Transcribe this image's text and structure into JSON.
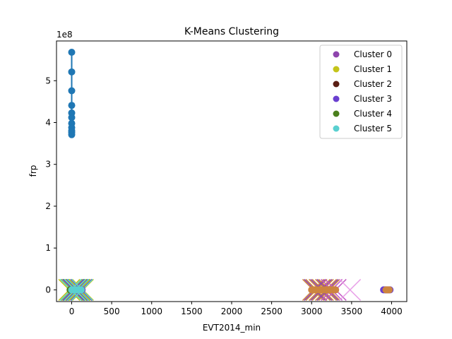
{
  "chart_data": {
    "type": "scatter",
    "title": "K-Means Clustering",
    "xlabel": "EVT2014_min",
    "ylabel": "frp",
    "y_offset_label": "1e8",
    "xlim": [
      -190,
      4190
    ],
    "ylim": [
      -0.28,
      5.95
    ],
    "y_multiplier": 100000000,
    "x_ticks": [
      {
        "value": 0,
        "label": "0"
      },
      {
        "value": 500,
        "label": "500"
      },
      {
        "value": 1000,
        "label": "1000"
      },
      {
        "value": 1500,
        "label": "1500"
      },
      {
        "value": 2000,
        "label": "2000"
      },
      {
        "value": 2500,
        "label": "2500"
      },
      {
        "value": 3000,
        "label": "3000"
      },
      {
        "value": 3500,
        "label": "3500"
      },
      {
        "value": 4000,
        "label": "4000"
      }
    ],
    "y_ticks": [
      {
        "value": 0,
        "label": "0"
      },
      {
        "value": 1,
        "label": "1"
      },
      {
        "value": 2,
        "label": "2"
      },
      {
        "value": 3,
        "label": "3"
      },
      {
        "value": 4,
        "label": "4"
      },
      {
        "value": 5,
        "label": "5"
      }
    ],
    "legend_position": "top-right",
    "legend": [
      {
        "label": "Cluster 0",
        "color": "#8e44ad"
      },
      {
        "label": "Cluster 1",
        "color": "#c4c41a"
      },
      {
        "label": "Cluster 2",
        "color": "#5a1e14"
      },
      {
        "label": "Cluster 3",
        "color": "#6a3fd0"
      },
      {
        "label": "Cluster 4",
        "color": "#4a7f1c"
      },
      {
        "label": "Cluster 5",
        "color": "#5ad0d0"
      }
    ],
    "line_series": {
      "color": "#1f77b4",
      "x": [
        0,
        0,
        0,
        0,
        0,
        0,
        0,
        0,
        0,
        0,
        0
      ],
      "y": [
        5.68,
        5.21,
        4.76,
        4.41,
        4.23,
        4.12,
        3.98,
        3.88,
        3.8,
        3.76,
        3.71
      ]
    },
    "marker_clusters": [
      {
        "color": "#1f77b4",
        "x": [
          0
        ],
        "y": [
          0.0
        ]
      },
      {
        "color": "#8e44ad",
        "x": [
          10,
          40,
          70,
          100,
          130
        ],
        "y": [
          0,
          0,
          0,
          0,
          0
        ]
      },
      {
        "color": "#c4c41a",
        "x": [
          0,
          30,
          60,
          90,
          120
        ],
        "y": [
          0,
          0,
          0,
          0,
          0
        ]
      },
      {
        "color": "#4a7f1c",
        "x": [
          -20,
          20,
          50,
          80,
          110
        ],
        "y": [
          0,
          0,
          0,
          0,
          0
        ]
      },
      {
        "color": "#6a3fd0",
        "x": [
          5,
          45,
          85,
          125
        ],
        "y": [
          0,
          0,
          0,
          0
        ]
      },
      {
        "color": "#5ad0d0",
        "x": [
          0,
          15,
          30,
          45,
          60,
          75,
          90,
          105,
          120
        ],
        "y": [
          0,
          0,
          0,
          0,
          0,
          0,
          0,
          0,
          0
        ]
      },
      {
        "color": "#cd853f",
        "x": [
          3000,
          3020,
          3040,
          3060,
          3080,
          3100,
          3120,
          3140,
          3160,
          3180,
          3200,
          3220,
          3240,
          3260,
          3280,
          3300
        ],
        "y": [
          0,
          0,
          0,
          0,
          0,
          0,
          0,
          0,
          0,
          0,
          0,
          0,
          0,
          0,
          0,
          0
        ]
      },
      {
        "color": "#6a3fd0",
        "x": [
          3900,
          3920,
          3940,
          3960,
          3980
        ],
        "y": [
          0,
          0,
          0,
          0,
          0
        ]
      },
      {
        "color": "#cd853f",
        "x": [
          3930,
          3950,
          3970
        ],
        "y": [
          0,
          0,
          0
        ]
      }
    ],
    "x_clusters": [
      {
        "color": "#2ca02c",
        "x": [
          0,
          30,
          60,
          90,
          120
        ],
        "y": [
          0,
          0,
          0,
          0,
          0
        ]
      },
      {
        "color": "#c4c41a",
        "x": [
          -30,
          10,
          50,
          100,
          140
        ],
        "y": [
          0,
          0,
          0,
          0,
          0
        ]
      },
      {
        "color": "#6a3fd0",
        "x": [
          20,
          70,
          120
        ],
        "y": [
          0,
          0,
          0
        ]
      },
      {
        "color": "#5ad0d0",
        "x": [
          -10,
          40,
          80,
          130
        ],
        "y": [
          0,
          0,
          0,
          0
        ]
      },
      {
        "color": "#cd853f",
        "x": [
          3020,
          3060,
          3100,
          3140,
          3180,
          3220
        ],
        "y": [
          0,
          0,
          0,
          0,
          0,
          0
        ]
      },
      {
        "color": "#8e44ad",
        "x": [
          3040,
          3120,
          3200
        ],
        "y": [
          0,
          0,
          0
        ]
      },
      {
        "color": "#c45cc4",
        "x": [
          3250,
          3300
        ],
        "y": [
          0,
          0
        ]
      },
      {
        "color": "#e8a0e8",
        "x": [
          3480
        ],
        "y": [
          0
        ]
      }
    ]
  }
}
